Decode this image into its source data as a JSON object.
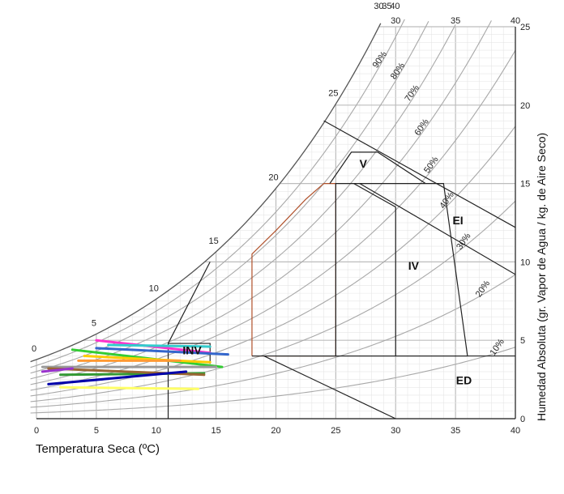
{
  "chart_data": {
    "type": "line",
    "xlabel": "Temperatura Seca (ºC)",
    "ylabel": "Humedad Absoluta (gr. Vapor de Agua / kg. de Aire Seco)",
    "xlim": [
      0,
      40
    ],
    "ylim": [
      0,
      25
    ],
    "x_ticks": [
      "0",
      "5",
      "10",
      "15",
      "20",
      "25",
      "30",
      "35",
      "40"
    ],
    "y_ticks": [
      "0",
      "5",
      "10",
      "15",
      "20",
      "25"
    ],
    "saturation_labels": [
      "0",
      "5",
      "10",
      "15",
      "20",
      "25",
      "30",
      "35",
      "40"
    ],
    "rh_curves": [
      {
        "rh": 0.1,
        "label": "10%"
      },
      {
        "rh": 0.2,
        "label": "20%"
      },
      {
        "rh": 0.3,
        "label": "30%"
      },
      {
        "rh": 0.4,
        "label": "40%"
      },
      {
        "rh": 0.5,
        "label": "50%"
      },
      {
        "rh": 0.6,
        "label": "60%"
      },
      {
        "rh": 0.7,
        "label": "70%"
      },
      {
        "rh": 0.8,
        "label": "80%"
      },
      {
        "rh": 0.9,
        "label": "90%"
      }
    ],
    "zones": [
      {
        "name": "INV",
        "label_at": [
          13,
          4.1
        ]
      },
      {
        "name": "V",
        "label_at": [
          27.3,
          16
        ]
      },
      {
        "name": "IV",
        "label_at": [
          31.5,
          9.5
        ]
      },
      {
        "name": "EI",
        "label_at": [
          35.2,
          12.4
        ]
      },
      {
        "name": "ED",
        "label_at": [
          35.7,
          2.2
        ]
      }
    ],
    "boundaries": [
      {
        "name": "inv-box",
        "points": [
          [
            11,
            0
          ],
          [
            11,
            4.8
          ],
          [
            14.5,
            4.8
          ],
          [
            14.5,
            3.5
          ]
        ]
      },
      {
        "name": "inv-diagonal",
        "points": [
          [
            11,
            4.8
          ],
          [
            14.5,
            10
          ]
        ]
      },
      {
        "name": "comfort-outline",
        "points": [
          [
            18,
            4
          ],
          [
            18,
            10.5
          ],
          [
            20,
            12
          ],
          [
            22.5,
            14
          ],
          [
            24,
            15
          ],
          [
            25,
            15
          ],
          [
            25,
            4
          ],
          [
            18,
            4
          ]
        ],
        "color": "#b0502a"
      },
      {
        "name": "zone-iv-polygon",
        "points": [
          [
            18,
            4
          ],
          [
            36,
            4
          ],
          [
            34,
            15
          ],
          [
            26,
            15
          ],
          [
            25,
            15
          ],
          [
            25,
            4
          ]
        ]
      },
      {
        "name": "zone-v-polygon",
        "points": [
          [
            24.5,
            15
          ],
          [
            26.3,
            17
          ],
          [
            28.5,
            17
          ],
          [
            32.5,
            15
          ]
        ]
      },
      {
        "name": "iv-divider",
        "points": [
          [
            30,
            4
          ],
          [
            30,
            13.5
          ]
        ]
      },
      {
        "name": "iv-diagonal",
        "points": [
          [
            26.5,
            15
          ],
          [
            30,
            13.5
          ]
        ]
      },
      {
        "name": "ei-line-upper",
        "points": [
          [
            24,
            19
          ],
          [
            40,
            12.2
          ]
        ]
      },
      {
        "name": "ei-line-lower",
        "points": [
          [
            27,
            15
          ],
          [
            40,
            9.2
          ]
        ]
      },
      {
        "name": "ed-line-upper",
        "points": [
          [
            19,
            4
          ],
          [
            30,
            0
          ]
        ]
      },
      {
        "name": "ed-line-lower",
        "points": [
          [
            20,
            4
          ],
          [
            40,
            4
          ]
        ]
      }
    ],
    "series": [
      {
        "color": "#ff33cc",
        "points": [
          [
            5,
            5
          ],
          [
            14.5,
            4.2
          ]
        ]
      },
      {
        "color": "#33cccc",
        "points": [
          [
            6,
            4.7
          ],
          [
            14.5,
            4.6
          ]
        ]
      },
      {
        "color": "#3366cc",
        "points": [
          [
            5,
            4.5
          ],
          [
            16,
            4.1
          ]
        ]
      },
      {
        "color": "#33cc33",
        "points": [
          [
            3,
            4.4
          ],
          [
            15.5,
            3.3
          ]
        ]
      },
      {
        "color": "#ffcc00",
        "points": [
          [
            4,
            4
          ],
          [
            14.5,
            3.6
          ]
        ]
      },
      {
        "color": "#ff9933",
        "points": [
          [
            3.5,
            3.7
          ],
          [
            12,
            3.7
          ]
        ]
      },
      {
        "color": "#999999",
        "points": [
          [
            0.5,
            3.3
          ],
          [
            15,
            3.3
          ]
        ]
      },
      {
        "color": "#339933",
        "points": [
          [
            2,
            2.8
          ],
          [
            14,
            2.9
          ]
        ]
      },
      {
        "color": "#996633",
        "points": [
          [
            1,
            3.2
          ],
          [
            14,
            2.8
          ]
        ]
      },
      {
        "color": "#9933cc",
        "points": [
          [
            0.5,
            3
          ],
          [
            3,
            3.2
          ]
        ]
      },
      {
        "color": "#0000aa",
        "points": [
          [
            1,
            2.2
          ],
          [
            12.5,
            3
          ]
        ]
      },
      {
        "color": "#ffff66",
        "points": [
          [
            2,
            2
          ],
          [
            13.5,
            1.9
          ]
        ]
      }
    ]
  }
}
